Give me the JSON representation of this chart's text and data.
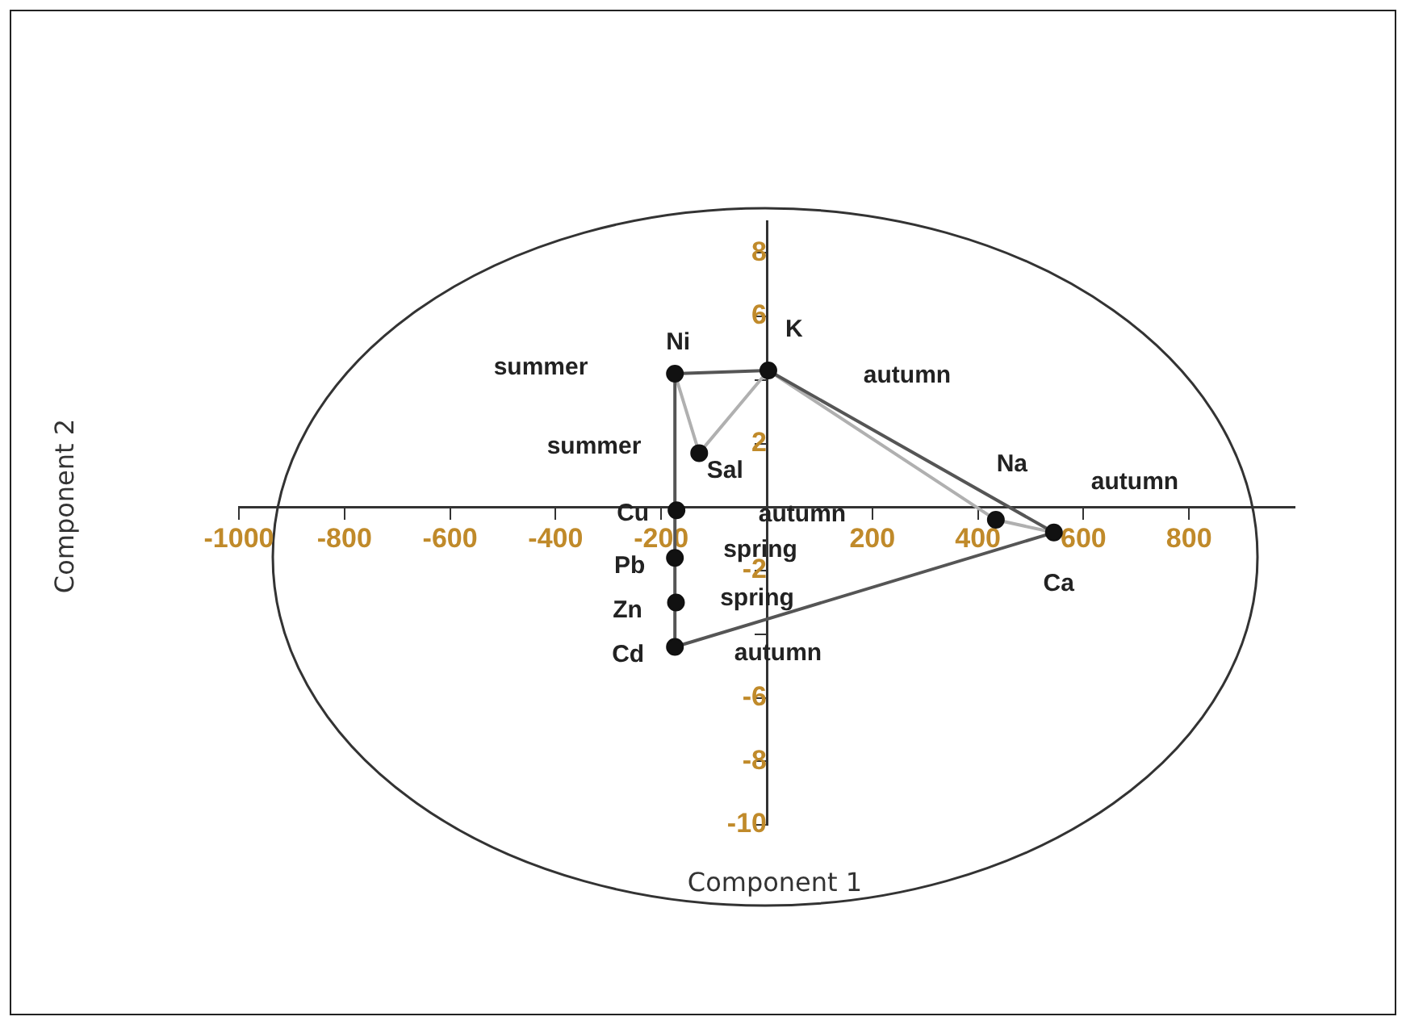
{
  "chart_data": {
    "type": "scatter",
    "xlabel": "Component 1",
    "ylabel": "Component 2",
    "xlim": [
      -1000,
      1000
    ],
    "ylim": [
      -10,
      9
    ],
    "xticks": [
      -1000,
      -800,
      -600,
      -400,
      -200,
      {
        "value": 0,
        "label": null
      },
      200,
      400,
      600,
      800
    ],
    "yticks": [
      -10,
      -8,
      -6,
      {
        "value": -4,
        "label": null
      },
      -2,
      {
        "value": 0,
        "label": null
      },
      2,
      {
        "value": 4,
        "label": null
      },
      6,
      8
    ],
    "grid": false,
    "legend": false,
    "series": [
      {
        "type": "line",
        "color": "#555555",
        "x": [
          -174,
          3,
          544
        ],
        "values": [
          4.2,
          4.3,
          -0.8
        ]
      },
      {
        "type": "line",
        "color": "#555555",
        "x": [
          -174,
          544
        ],
        "values": [
          -4.4,
          -0.8
        ]
      },
      {
        "type": "line",
        "color": "#555555",
        "x": [
          -174,
          -174
        ],
        "values": [
          4.2,
          -4.4
        ]
      },
      {
        "type": "line",
        "color": "#b0b0b0",
        "x": [
          -174,
          -128,
          3,
          434,
          544
        ],
        "values": [
          4.2,
          1.7,
          4.3,
          -0.4,
          -0.8
        ]
      },
      {
        "type": "scatter",
        "color": "#111111",
        "marker": "circle",
        "x": [
          -174,
          3,
          -128,
          -171,
          -174,
          -172,
          -174,
          434,
          544
        ],
        "values": [
          4.2,
          4.3,
          1.7,
          -0.1,
          -1.6,
          -3.0,
          -4.4,
          -0.4,
          -0.8
        ],
        "value_labels": [
          "Ni",
          "K",
          "Sal",
          "Cu",
          "Pb",
          "Zn",
          "Cd",
          "Na",
          "Ca"
        ]
      }
    ],
    "annotations": [
      "summer",
      "summer",
      "autumn",
      "autumn",
      "autumn",
      "spring",
      "spring",
      "autumn"
    ]
  }
}
